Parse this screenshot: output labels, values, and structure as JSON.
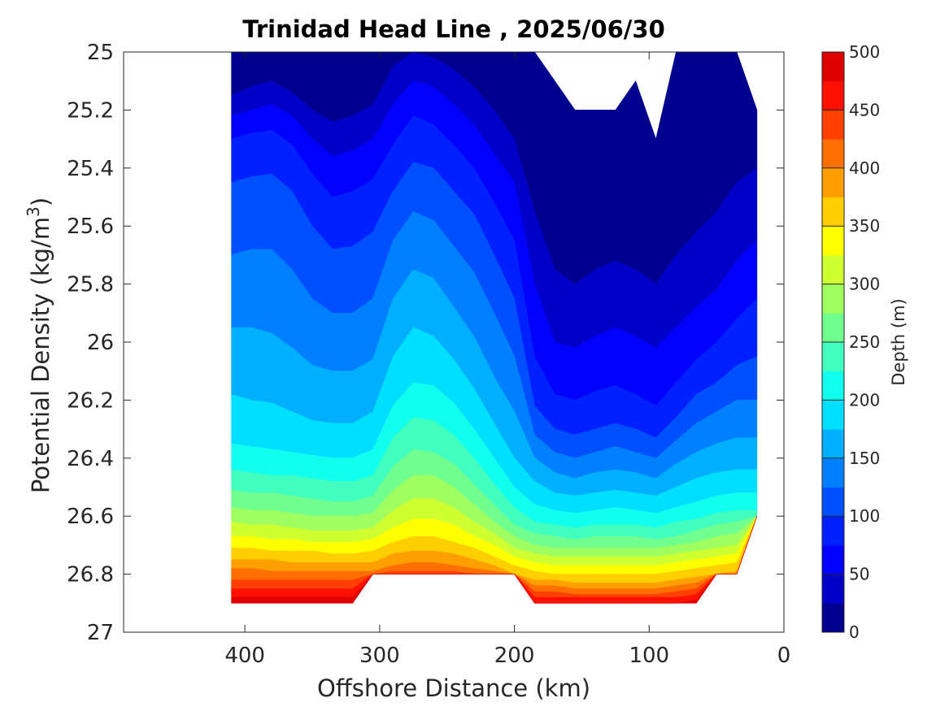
{
  "chart_data": {
    "type": "filled-contour",
    "title": "Trinidad Head Line , 2025/06/30",
    "xlabel": "Offshore Distance (km)",
    "ylabel_main": "Potential Density (kg/m",
    "ylabel_sup": "3",
    "ylabel_close": ")",
    "x_axis": {
      "range": [
        490,
        0
      ],
      "direction": "reversed",
      "ticks": [
        400,
        300,
        200,
        100,
        0
      ],
      "tick_labels": [
        "400",
        "300",
        "200",
        "100",
        "0"
      ]
    },
    "y_axis": {
      "range": [
        25,
        27
      ],
      "direction": "reversed",
      "ticks": [
        25,
        25.2,
        25.4,
        25.6,
        25.8,
        26,
        26.2,
        26.4,
        26.6,
        26.8,
        27
      ],
      "tick_labels": [
        "25",
        "25.2",
        "25.4",
        "25.6",
        "25.8",
        "26",
        "26.2",
        "26.4",
        "26.6",
        "26.8",
        "27"
      ]
    },
    "colorbar": {
      "label": "Depth (m)",
      "range": [
        0,
        500
      ],
      "step": 25,
      "tick_values": [
        0,
        50,
        100,
        150,
        200,
        250,
        300,
        350,
        400,
        450,
        500
      ],
      "tick_labels": [
        "0",
        "50",
        "100",
        "150",
        "200",
        "250",
        "300",
        "350",
        "400",
        "450",
        "500"
      ],
      "colors": [
        "#00008f",
        "#0000c8",
        "#0000ff",
        "#0020ff",
        "#0050ff",
        "#0080ff",
        "#00b0ff",
        "#00dfff",
        "#10ffef",
        "#40ffbf",
        "#70ff8f",
        "#9fff60",
        "#cfff30",
        "#ffff00",
        "#ffcf00",
        "#ff9f00",
        "#ff7000",
        "#ff4000",
        "#ff1000",
        "#df0000"
      ]
    },
    "contour_levels": [
      25,
      50,
      75,
      100,
      125,
      150,
      175,
      200,
      225,
      250,
      275,
      300,
      325,
      350,
      375,
      400,
      425,
      450,
      475
    ],
    "x": [
      410,
      395,
      380,
      365,
      350,
      335,
      320,
      305,
      290,
      275,
      260,
      245,
      230,
      215,
      200,
      185,
      170,
      155,
      140,
      125,
      110,
      95,
      80,
      65,
      50,
      35,
      20
    ],
    "top_density": [
      25.0,
      25.0,
      25.0,
      25.0,
      25.0,
      25.0,
      25.0,
      25.0,
      25.0,
      25.0,
      25.0,
      25.0,
      25.0,
      25.0,
      25.0,
      25.0,
      25.1,
      25.2,
      25.2,
      25.2,
      25.1,
      25.3,
      25.0,
      25.0,
      25.0,
      25.0,
      25.2
    ],
    "bottom_density": [
      26.9,
      26.9,
      26.9,
      26.9,
      26.9,
      26.9,
      26.9,
      26.8,
      26.8,
      26.8,
      26.8,
      26.8,
      26.8,
      26.8,
      26.8,
      26.9,
      26.9,
      26.9,
      26.9,
      26.9,
      26.9,
      26.9,
      26.9,
      26.9,
      26.8,
      26.8,
      26.6
    ],
    "isopycnal_density": [
      [
        25.15,
        25.12,
        25.1,
        25.14,
        25.2,
        25.24,
        25.22,
        25.18,
        25.05,
        25.0,
        25.02,
        25.06,
        25.12,
        25.2,
        25.3,
        25.55,
        25.75,
        25.8,
        25.75,
        25.72,
        25.75,
        25.8,
        25.7,
        25.62,
        25.55,
        25.45,
        25.4
      ],
      [
        25.22,
        25.2,
        25.18,
        25.22,
        25.3,
        25.36,
        25.34,
        25.3,
        25.18,
        25.1,
        25.12,
        25.18,
        25.25,
        25.35,
        25.45,
        25.8,
        26.0,
        26.02,
        25.98,
        25.95,
        25.98,
        26.02,
        25.95,
        25.88,
        25.82,
        25.72,
        25.65
      ],
      [
        25.3,
        25.28,
        25.27,
        25.32,
        25.42,
        25.5,
        25.48,
        25.44,
        25.32,
        25.22,
        25.25,
        25.32,
        25.4,
        25.52,
        25.65,
        26.05,
        26.18,
        26.2,
        26.17,
        26.15,
        26.18,
        26.22,
        26.14,
        26.06,
        26.0,
        25.92,
        25.85
      ],
      [
        25.45,
        25.43,
        25.42,
        25.48,
        25.6,
        25.68,
        25.67,
        25.62,
        25.48,
        25.38,
        25.4,
        25.48,
        25.56,
        25.7,
        25.85,
        26.22,
        26.3,
        26.32,
        26.3,
        26.28,
        26.3,
        26.33,
        26.26,
        26.18,
        26.14,
        26.08,
        26.05
      ],
      [
        25.7,
        25.68,
        25.68,
        25.75,
        25.85,
        25.9,
        25.9,
        25.85,
        25.65,
        25.55,
        25.58,
        25.67,
        25.76,
        25.9,
        26.05,
        26.32,
        26.38,
        26.4,
        26.38,
        26.36,
        26.38,
        26.4,
        26.34,
        26.28,
        26.24,
        26.2,
        26.2
      ],
      [
        25.95,
        25.95,
        25.97,
        26.02,
        26.08,
        26.1,
        26.1,
        26.06,
        25.85,
        25.75,
        25.78,
        25.88,
        25.98,
        26.12,
        26.24,
        26.4,
        26.45,
        26.47,
        26.45,
        26.44,
        26.45,
        26.47,
        26.42,
        26.38,
        26.35,
        26.33,
        26.33
      ],
      [
        26.18,
        26.2,
        26.21,
        26.24,
        26.27,
        26.28,
        26.28,
        26.24,
        26.05,
        25.95,
        25.98,
        26.06,
        26.16,
        26.28,
        26.4,
        26.48,
        26.52,
        26.53,
        26.52,
        26.51,
        26.52,
        26.53,
        26.5,
        26.47,
        26.45,
        26.44,
        26.44
      ],
      [
        26.35,
        26.36,
        26.37,
        26.38,
        26.39,
        26.4,
        26.4,
        26.37,
        26.22,
        26.14,
        26.15,
        26.21,
        26.3,
        26.4,
        26.5,
        26.56,
        26.58,
        26.59,
        26.58,
        26.57,
        26.58,
        26.59,
        26.57,
        26.55,
        26.53,
        26.52,
        26.52
      ],
      [
        26.44,
        26.45,
        26.46,
        26.46,
        26.47,
        26.48,
        26.48,
        26.46,
        26.33,
        26.26,
        26.27,
        26.32,
        26.4,
        26.49,
        26.57,
        26.62,
        26.63,
        26.64,
        26.63,
        26.63,
        26.63,
        26.64,
        26.62,
        26.61,
        26.59,
        26.58,
        26.58
      ],
      [
        26.51,
        26.52,
        26.52,
        26.53,
        26.54,
        26.55,
        26.55,
        26.53,
        26.43,
        26.37,
        26.38,
        26.42,
        26.49,
        26.56,
        26.63,
        26.66,
        26.67,
        26.68,
        26.67,
        26.67,
        26.67,
        26.68,
        26.67,
        26.65,
        26.63,
        26.62,
        26.6
      ],
      [
        26.57,
        26.58,
        26.58,
        26.59,
        26.6,
        26.6,
        26.6,
        26.59,
        26.51,
        26.46,
        26.46,
        26.5,
        26.56,
        26.62,
        26.67,
        26.7,
        26.71,
        26.71,
        26.71,
        26.71,
        26.71,
        26.71,
        26.7,
        26.69,
        26.67,
        26.66,
        26.62
      ],
      [
        26.62,
        26.63,
        26.63,
        26.64,
        26.65,
        26.65,
        26.65,
        26.64,
        26.58,
        26.54,
        26.54,
        26.57,
        26.62,
        26.66,
        26.71,
        26.73,
        26.74,
        26.74,
        26.74,
        26.74,
        26.74,
        26.74,
        26.73,
        26.72,
        26.71,
        26.7,
        26.64
      ],
      [
        26.67,
        26.67,
        26.68,
        26.68,
        26.69,
        26.69,
        26.69,
        26.68,
        26.64,
        26.61,
        26.61,
        26.63,
        26.67,
        26.7,
        26.74,
        26.76,
        26.77,
        26.77,
        26.77,
        26.77,
        26.77,
        26.77,
        26.76,
        26.75,
        26.74,
        26.73,
        26.66
      ],
      [
        26.71,
        26.71,
        26.72,
        26.72,
        26.72,
        26.73,
        26.73,
        26.72,
        26.69,
        26.67,
        26.67,
        26.69,
        26.71,
        26.74,
        26.77,
        26.79,
        26.8,
        26.8,
        26.8,
        26.8,
        26.8,
        26.8,
        26.79,
        26.78,
        26.77,
        26.76,
        26.68
      ],
      [
        26.75,
        26.75,
        26.75,
        26.76,
        26.76,
        26.76,
        26.76,
        26.76,
        26.73,
        26.72,
        26.72,
        26.73,
        26.75,
        26.77,
        26.8,
        26.82,
        26.82,
        26.83,
        26.83,
        26.83,
        26.83,
        26.83,
        26.82,
        26.81,
        26.8,
        26.79,
        26.7
      ],
      [
        26.78,
        26.78,
        26.79,
        26.79,
        26.79,
        26.79,
        26.79,
        26.79,
        26.77,
        26.76,
        26.76,
        26.77,
        26.78,
        26.79,
        26.82,
        26.84,
        26.84,
        26.85,
        26.85,
        26.85,
        26.85,
        26.85,
        26.84,
        26.83,
        26.8,
        26.8,
        26.7
      ],
      [
        26.82,
        26.82,
        26.82,
        26.82,
        26.82,
        26.82,
        26.82,
        26.8,
        26.79,
        26.79,
        26.79,
        26.79,
        26.8,
        26.8,
        26.8,
        26.86,
        26.86,
        26.87,
        26.87,
        26.87,
        26.87,
        26.87,
        26.86,
        26.85,
        26.8,
        26.8,
        26.7
      ],
      [
        26.85,
        26.85,
        26.85,
        26.85,
        26.85,
        26.85,
        26.85,
        26.8,
        26.8,
        26.8,
        26.8,
        26.8,
        26.8,
        26.8,
        26.8,
        26.88,
        26.88,
        26.88,
        26.88,
        26.88,
        26.88,
        26.88,
        26.88,
        26.87,
        26.8,
        26.8,
        26.7
      ],
      [
        26.88,
        26.88,
        26.88,
        26.88,
        26.88,
        26.88,
        26.88,
        26.8,
        26.8,
        26.8,
        26.8,
        26.8,
        26.8,
        26.8,
        26.8,
        26.9,
        26.9,
        26.9,
        26.9,
        26.9,
        26.9,
        26.9,
        26.9,
        26.89,
        26.8,
        26.8,
        26.7
      ]
    ],
    "grid": false,
    "colorbar_position": "right"
  }
}
